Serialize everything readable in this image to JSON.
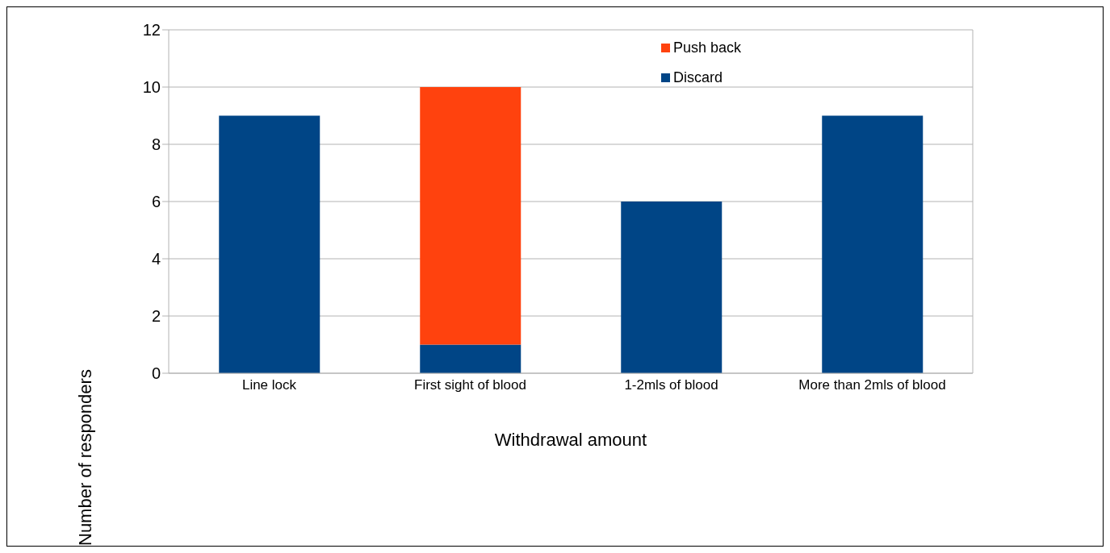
{
  "chart_data": {
    "type": "bar",
    "stacked": true,
    "xlabel": "Withdrawal amount",
    "ylabel": "Number of responders",
    "categories": [
      "Line lock",
      "First sight of blood",
      "1-2mls of blood",
      "More than 2mls of blood"
    ],
    "series": [
      {
        "name": "Discard",
        "color": "#004586",
        "values": [
          9,
          1,
          6,
          9
        ]
      },
      {
        "name": "Push back",
        "color": "#ff420e",
        "values": [
          null,
          9,
          null,
          null
        ]
      }
    ],
    "ylim": [
      0,
      12
    ],
    "yticks": [
      0,
      2,
      4,
      6,
      8,
      10,
      12
    ],
    "grid": "y",
    "legend": "top right"
  }
}
